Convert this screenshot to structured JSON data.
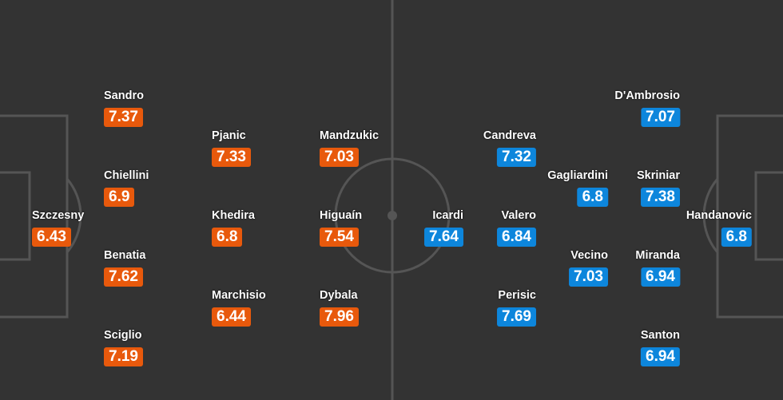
{
  "colors": {
    "home": "#e8590c",
    "away": "#0d86dc",
    "pitch": "#333333",
    "lines": "#555555"
  },
  "home": [
    {
      "name": "Szczesny",
      "rating": "6.43"
    },
    {
      "name": "Sandro",
      "rating": "7.37"
    },
    {
      "name": "Chiellini",
      "rating": "6.9"
    },
    {
      "name": "Benatia",
      "rating": "7.62"
    },
    {
      "name": "Sciglio",
      "rating": "7.19"
    },
    {
      "name": "Pjanic",
      "rating": "7.33"
    },
    {
      "name": "Khedira",
      "rating": "6.8"
    },
    {
      "name": "Marchisio",
      "rating": "6.44"
    },
    {
      "name": "Mandzukic",
      "rating": "7.03"
    },
    {
      "name": "Higuaín",
      "rating": "7.54"
    },
    {
      "name": "Dybala",
      "rating": "7.96"
    }
  ],
  "away": [
    {
      "name": "Handanovic",
      "rating": "6.8"
    },
    {
      "name": "D'Ambrosio",
      "rating": "7.07"
    },
    {
      "name": "Skriniar",
      "rating": "7.38"
    },
    {
      "name": "Miranda",
      "rating": "6.94"
    },
    {
      "name": "Santon",
      "rating": "6.94"
    },
    {
      "name": "Gagliardini",
      "rating": "6.8"
    },
    {
      "name": "Vecino",
      "rating": "7.03"
    },
    {
      "name": "Candreva",
      "rating": "7.32"
    },
    {
      "name": "Valero",
      "rating": "6.84"
    },
    {
      "name": "Perisic",
      "rating": "7.69"
    },
    {
      "name": "Icardi",
      "rating": "7.64"
    }
  ]
}
